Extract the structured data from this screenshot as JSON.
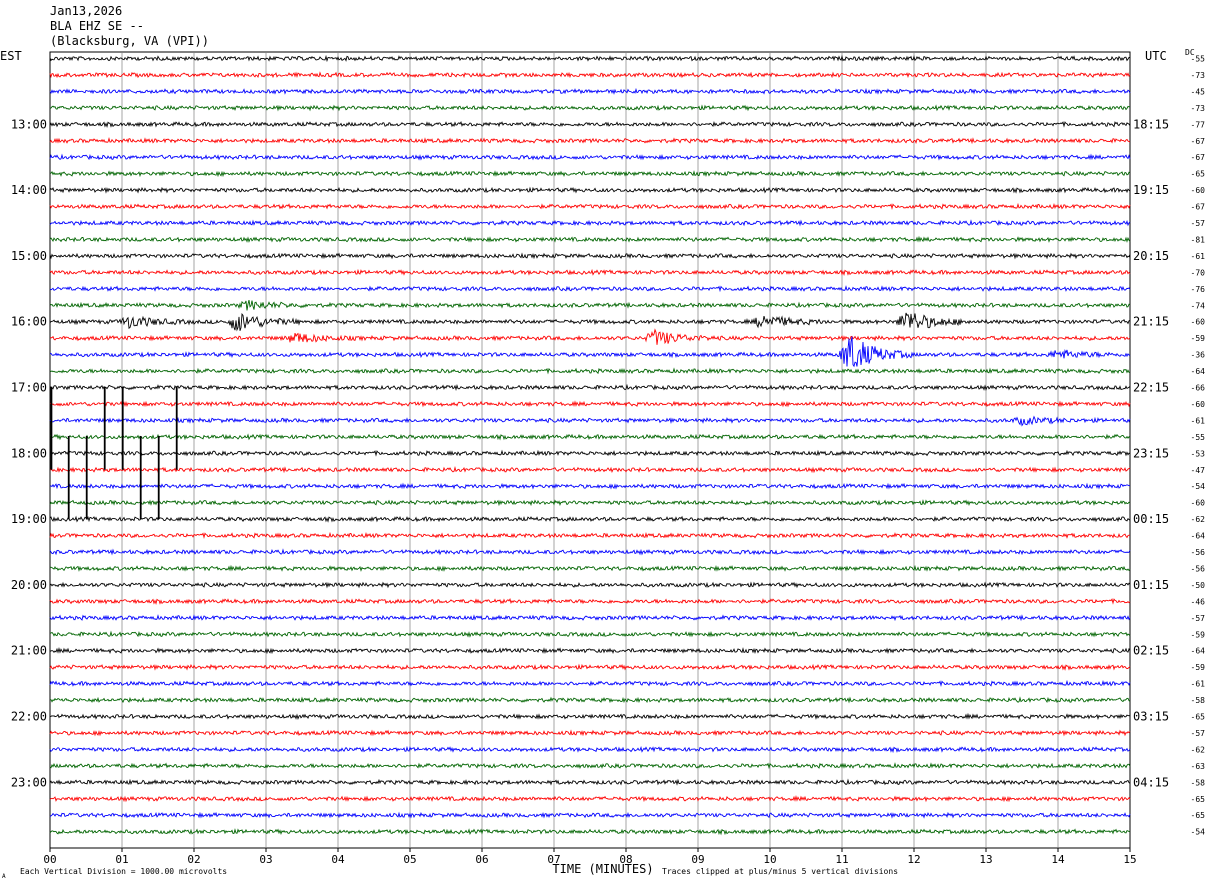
{
  "header": {
    "date": "Jan13,2026",
    "station": "BLA EHZ SE --",
    "location": "(Blacksburg, VA (VPI))"
  },
  "left_zone_label": "EST",
  "right_zone_label": "UTC",
  "dc_label": "DC",
  "footer": {
    "corner_mark": "A",
    "vertical_division": "Each Vertical Division = 1000.00 microvolts",
    "clip_note": "Traces clipped at plus/minus 5 vertical divisions"
  },
  "colors": {
    "black": "#000000",
    "red": "#ff0000",
    "blue": "#0000ff",
    "green": "#006400",
    "grid": "#808080"
  },
  "chart_data": {
    "type": "line",
    "title": "BLA EHZ SE --",
    "xlabel": "TIME (MINUTES)",
    "xlim": [
      0,
      15
    ],
    "x_ticks": [
      "00",
      "01",
      "02",
      "03",
      "04",
      "05",
      "06",
      "07",
      "08",
      "09",
      "10",
      "11",
      "12",
      "13",
      "14",
      "15"
    ],
    "rows_per_hour": 4,
    "row_minutes": 15,
    "color_cycle": [
      "black",
      "red",
      "blue",
      "green"
    ],
    "left_hour_labels": [
      {
        "row": 4,
        "label": "13:00"
      },
      {
        "row": 8,
        "label": "14:00"
      },
      {
        "row": 12,
        "label": "15:00"
      },
      {
        "row": 16,
        "label": "16:00"
      },
      {
        "row": 20,
        "label": "17:00"
      },
      {
        "row": 24,
        "label": "18:00"
      },
      {
        "row": 28,
        "label": "19:00"
      },
      {
        "row": 32,
        "label": "20:00"
      },
      {
        "row": 36,
        "label": "21:00"
      },
      {
        "row": 40,
        "label": "22:00"
      },
      {
        "row": 44,
        "label": "23:00"
      }
    ],
    "right_hour_labels": [
      {
        "row": 4,
        "label": "18:15"
      },
      {
        "row": 8,
        "label": "19:15"
      },
      {
        "row": 12,
        "label": "20:15"
      },
      {
        "row": 16,
        "label": "21:15"
      },
      {
        "row": 20,
        "label": "22:15"
      },
      {
        "row": 24,
        "label": "23:15"
      },
      {
        "row": 28,
        "label": "00:15"
      },
      {
        "row": 32,
        "label": "01:15"
      },
      {
        "row": 36,
        "label": "02:15"
      },
      {
        "row": 40,
        "label": "03:15"
      },
      {
        "row": 44,
        "label": "04:15"
      }
    ],
    "dc_offsets": [
      -55,
      -73,
      -45,
      -73,
      -77,
      -67,
      -67,
      -65,
      -60,
      -67,
      -57,
      -81,
      -61,
      -70,
      -76,
      -74,
      -60,
      -59,
      -36,
      -64,
      -66,
      -60,
      -61,
      -55,
      -53,
      -47,
      -54,
      -60,
      -62,
      -64,
      -56,
      -56,
      -50,
      -46,
      -57,
      -59,
      -64,
      -59,
      -61,
      -58,
      -65,
      -57,
      -62,
      -63,
      -58,
      -65,
      -65,
      -54
    ],
    "events": [
      {
        "row": 15,
        "minute": 2.75,
        "amplitude": 0.5
      },
      {
        "row": 16,
        "minute": 1.1,
        "amplitude": 0.7
      },
      {
        "row": 16,
        "minute": 2.6,
        "amplitude": 1.2
      },
      {
        "row": 16,
        "minute": 9.9,
        "amplitude": 0.8
      },
      {
        "row": 16,
        "minute": 11.9,
        "amplitude": 1.4
      },
      {
        "row": 17,
        "minute": 3.4,
        "amplitude": 0.6
      },
      {
        "row": 17,
        "minute": 8.4,
        "amplitude": 0.9
      },
      {
        "row": 18,
        "minute": 11.1,
        "amplitude": 2.5
      },
      {
        "row": 18,
        "minute": 14.0,
        "amplitude": 0.5
      },
      {
        "row": 22,
        "minute": 13.5,
        "amplitude": 0.4
      }
    ],
    "clipped_spikes": [
      {
        "row": 20,
        "minute": 0.02,
        "direction": "down",
        "rows": 5
      },
      {
        "row": 20,
        "minute": 0.76,
        "direction": "down",
        "rows": 5
      },
      {
        "row": 20,
        "minute": 1.01,
        "direction": "down",
        "rows": 5
      },
      {
        "row": 20,
        "minute": 1.76,
        "direction": "down",
        "rows": 5
      },
      {
        "row": 23,
        "minute": 0.26,
        "direction": "down",
        "rows": 5
      },
      {
        "row": 23,
        "minute": 0.51,
        "direction": "down",
        "rows": 5
      },
      {
        "row": 23,
        "minute": 1.26,
        "direction": "down",
        "rows": 5
      },
      {
        "row": 23,
        "minute": 1.51,
        "direction": "down",
        "rows": 5
      }
    ]
  }
}
